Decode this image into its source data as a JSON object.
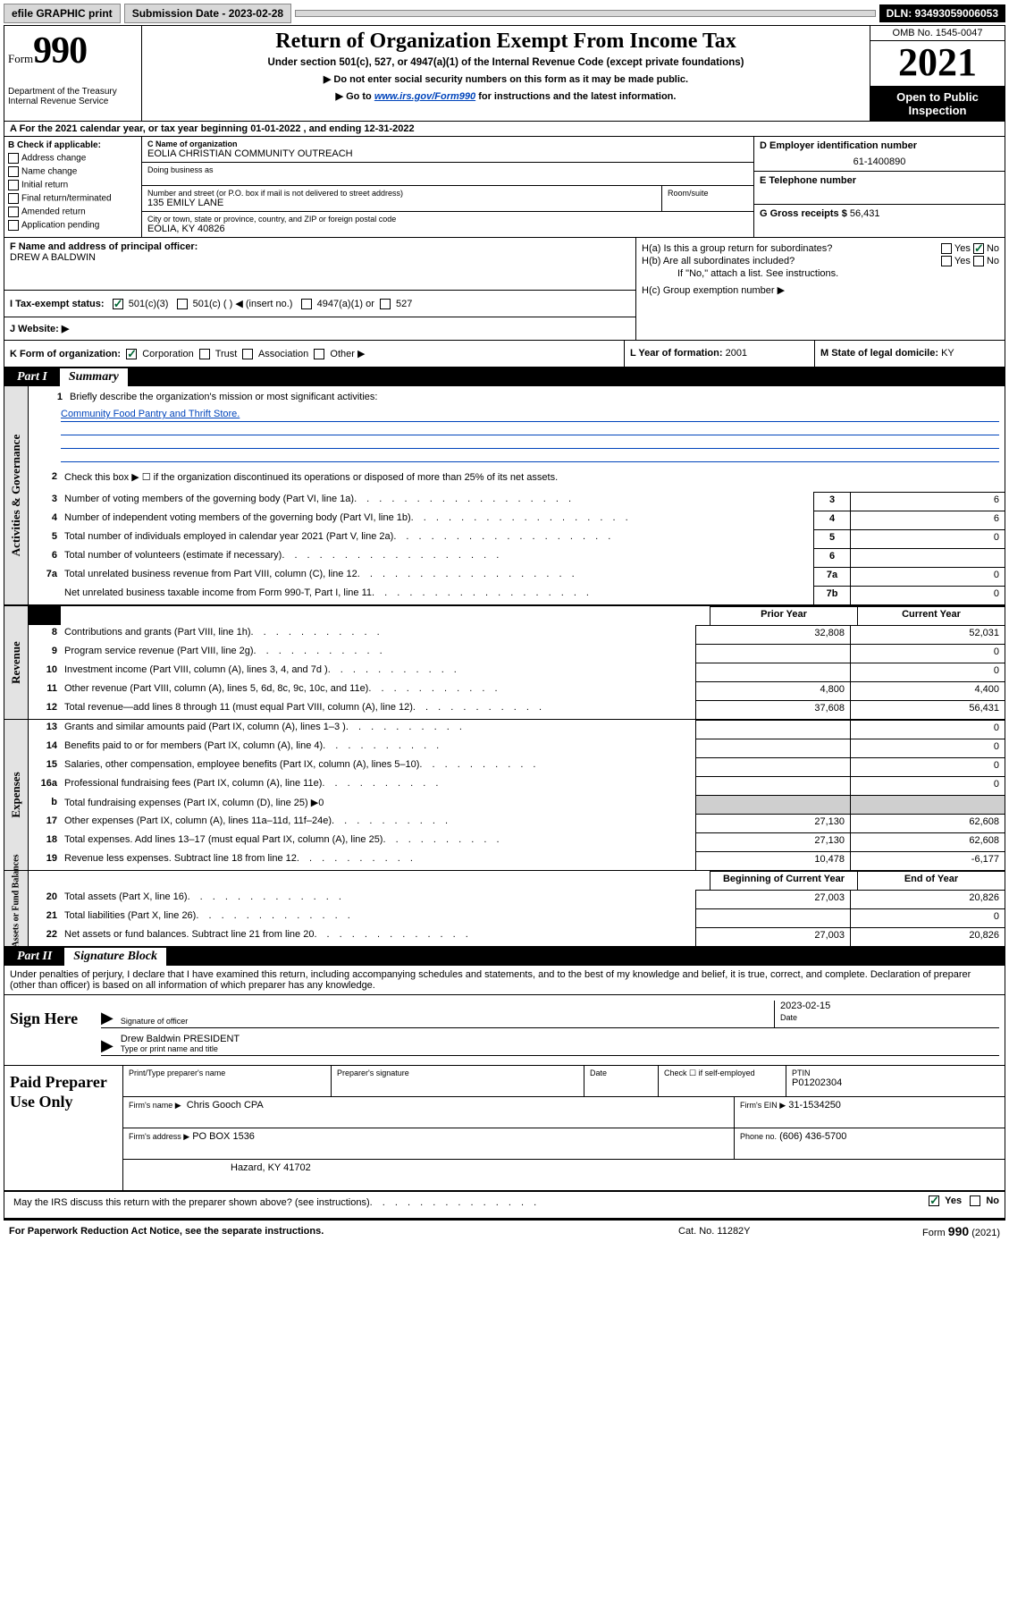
{
  "top_bar": {
    "efile_btn": "efile GRAPHIC print",
    "submission_label": "Submission Date - 2023-02-28",
    "dln": "DLN: 93493059006053"
  },
  "header": {
    "form_word": "Form",
    "form_num": "990",
    "dept": "Department of the Treasury",
    "irs": "Internal Revenue Service",
    "title": "Return of Organization Exempt From Income Tax",
    "subtitle": "Under section 501(c), 527, or 4947(a)(1) of the Internal Revenue Code (except private foundations)",
    "line1": "▶ Do not enter social security numbers on this form as it may be made public.",
    "line2_pre": "▶ Go to ",
    "line2_link": "www.irs.gov/Form990",
    "line2_post": " for instructions and the latest information.",
    "omb": "OMB No. 1545-0047",
    "year": "2021",
    "open_public1": "Open to Public",
    "open_public2": "Inspection"
  },
  "row_a": "A For the 2021 calendar year, or tax year beginning 01-01-2022   , and ending 12-31-2022",
  "section_b": {
    "header": "B Check if applicable:",
    "items": [
      "Address change",
      "Name change",
      "Initial return",
      "Final return/terminated",
      "Amended return",
      "Application pending"
    ]
  },
  "section_c": {
    "name_label": "C Name of organization",
    "name_val": "EOLIA CHRISTIAN COMMUNITY OUTREACH",
    "dba_label": "Doing business as",
    "street_label": "Number and street (or P.O. box if mail is not delivered to street address)",
    "street_val": "135 EMILY LANE",
    "room_label": "Room/suite",
    "city_label": "City or town, state or province, country, and ZIP or foreign postal code",
    "city_val": "EOLIA, KY  40826"
  },
  "section_d": {
    "label": "D Employer identification number",
    "val": "61-1400890"
  },
  "section_e": {
    "label": "E Telephone number"
  },
  "section_g": {
    "label": "G Gross receipts $",
    "val": "56,431"
  },
  "section_f": {
    "label": "F  Name and address of principal officer:",
    "val": "DREW A BALDWIN"
  },
  "section_h": {
    "ha": "H(a)  Is this a group return for subordinates?",
    "hb": "H(b)  Are all subordinates included?",
    "hb_note": "If \"No,\" attach a list. See instructions.",
    "hc": "H(c)  Group exemption number ▶",
    "yes": "Yes",
    "no": "No"
  },
  "row_i": {
    "label": "I   Tax-exempt status:",
    "opt1": "501(c)(3)",
    "opt2": "501(c) (   ) ◀ (insert no.)",
    "opt3": "4947(a)(1) or",
    "opt4": "527"
  },
  "row_j": "J   Website: ▶",
  "row_k": {
    "label": "K Form of organization:",
    "opts": [
      "Corporation",
      "Trust",
      "Association",
      "Other ▶"
    ],
    "year_label": "L Year of formation:",
    "year_val": "2001",
    "state_label": "M State of legal domicile:",
    "state_val": "KY"
  },
  "part1": {
    "num": "Part I",
    "title": "Summary"
  },
  "summary": {
    "briefly_label": "Briefly describe the organization's mission or most significant activities:",
    "briefly_val": "Community Food Pantry and Thrift Store.",
    "line2": "Check this box ▶ ☐  if the organization discontinued its operations or disposed of more than 25% of its net assets.",
    "lines": [
      {
        "n": "3",
        "d": "Number of voting members of the governing body (Part VI, line 1a)",
        "c": "3",
        "v": "6"
      },
      {
        "n": "4",
        "d": "Number of independent voting members of the governing body (Part VI, line 1b)",
        "c": "4",
        "v": "6"
      },
      {
        "n": "5",
        "d": "Total number of individuals employed in calendar year 2021 (Part V, line 2a)",
        "c": "5",
        "v": "0"
      },
      {
        "n": "6",
        "d": "Total number of volunteers (estimate if necessary)",
        "c": "6",
        "v": ""
      },
      {
        "n": "7a",
        "d": "Total unrelated business revenue from Part VIII, column (C), line 12",
        "c": "7a",
        "v": "0"
      },
      {
        "n": "",
        "d": "Net unrelated business taxable income from Form 990-T, Part I, line 11",
        "c": "7b",
        "v": "0"
      }
    ]
  },
  "revenue_hdr": {
    "prior": "Prior Year",
    "current": "Current Year"
  },
  "revenue": [
    {
      "n": "8",
      "d": "Contributions and grants (Part VIII, line 1h)",
      "p": "32,808",
      "c": "52,031"
    },
    {
      "n": "9",
      "d": "Program service revenue (Part VIII, line 2g)",
      "p": "",
      "c": "0"
    },
    {
      "n": "10",
      "d": "Investment income (Part VIII, column (A), lines 3, 4, and 7d )",
      "p": "",
      "c": "0"
    },
    {
      "n": "11",
      "d": "Other revenue (Part VIII, column (A), lines 5, 6d, 8c, 9c, 10c, and 11e)",
      "p": "4,800",
      "c": "4,400"
    },
    {
      "n": "12",
      "d": "Total revenue—add lines 8 through 11 (must equal Part VIII, column (A), line 12)",
      "p": "37,608",
      "c": "56,431"
    }
  ],
  "expenses": [
    {
      "n": "13",
      "d": "Grants and similar amounts paid (Part IX, column (A), lines 1–3 )",
      "p": "",
      "c": "0"
    },
    {
      "n": "14",
      "d": "Benefits paid to or for members (Part IX, column (A), line 4)",
      "p": "",
      "c": "0"
    },
    {
      "n": "15",
      "d": "Salaries, other compensation, employee benefits (Part IX, column (A), lines 5–10)",
      "p": "",
      "c": "0"
    },
    {
      "n": "16a",
      "d": "Professional fundraising fees (Part IX, column (A), line 11e)",
      "p": "",
      "c": "0"
    },
    {
      "n": "b",
      "d": "Total fundraising expenses (Part IX, column (D), line 25) ▶0",
      "grey": true
    },
    {
      "n": "17",
      "d": "Other expenses (Part IX, column (A), lines 11a–11d, 11f–24e)",
      "p": "27,130",
      "c": "62,608"
    },
    {
      "n": "18",
      "d": "Total expenses. Add lines 13–17 (must equal Part IX, column (A), line 25)",
      "p": "27,130",
      "c": "62,608"
    },
    {
      "n": "19",
      "d": "Revenue less expenses. Subtract line 18 from line 12",
      "p": "10,478",
      "c": "-6,177"
    }
  ],
  "netassets_hdr": {
    "begin": "Beginning of Current Year",
    "end": "End of Year"
  },
  "netassets": [
    {
      "n": "20",
      "d": "Total assets (Part X, line 16)",
      "p": "27,003",
      "c": "20,826"
    },
    {
      "n": "21",
      "d": "Total liabilities (Part X, line 26)",
      "p": "",
      "c": "0"
    },
    {
      "n": "22",
      "d": "Net assets or fund balances. Subtract line 21 from line 20",
      "p": "27,003",
      "c": "20,826"
    }
  ],
  "side_labels": {
    "activities": "Activities & Governance",
    "revenue": "Revenue",
    "expenses": "Expenses",
    "netassets": "Net Assets or Fund Balances"
  },
  "part2": {
    "num": "Part II",
    "title": "Signature Block"
  },
  "declaration": "Under penalties of perjury, I declare that I have examined this return, including accompanying schedules and statements, and to the best of my knowledge and belief, it is true, correct, and complete. Declaration of preparer (other than officer) is based on all information of which preparer has any knowledge.",
  "sign": {
    "here": "Sign Here",
    "sig_label": "Signature of officer",
    "date_label": "Date",
    "date_val": "2023-02-15",
    "name_val": "Drew Baldwin  PRESIDENT",
    "name_label": "Type or print name and title"
  },
  "paid": {
    "left": "Paid Preparer Use Only",
    "r1": {
      "c1": "Print/Type preparer's name",
      "c2": "Preparer's signature",
      "c3": "Date",
      "c4_pre": "Check ☐  if self-employed",
      "c5": "PTIN",
      "c5v": "P01202304"
    },
    "r2": {
      "label": "Firm's name   ▶",
      "val": "Chris Gooch CPA",
      "ein_label": "Firm's EIN ▶",
      "ein_val": "31-1534250"
    },
    "r3": {
      "label": "Firm's address ▶",
      "val": "PO BOX 1536",
      "phone_label": "Phone no.",
      "phone_val": "(606) 436-5700"
    },
    "r4": {
      "val": "Hazard, KY  41702"
    }
  },
  "may_irs": "May the IRS discuss this return with the preparer shown above? (see instructions)",
  "footer": {
    "left": "For Paperwork Reduction Act Notice, see the separate instructions.",
    "mid": "Cat. No. 11282Y",
    "right_pre": "Form ",
    "right_bold": "990",
    "right_post": " (2021)"
  }
}
